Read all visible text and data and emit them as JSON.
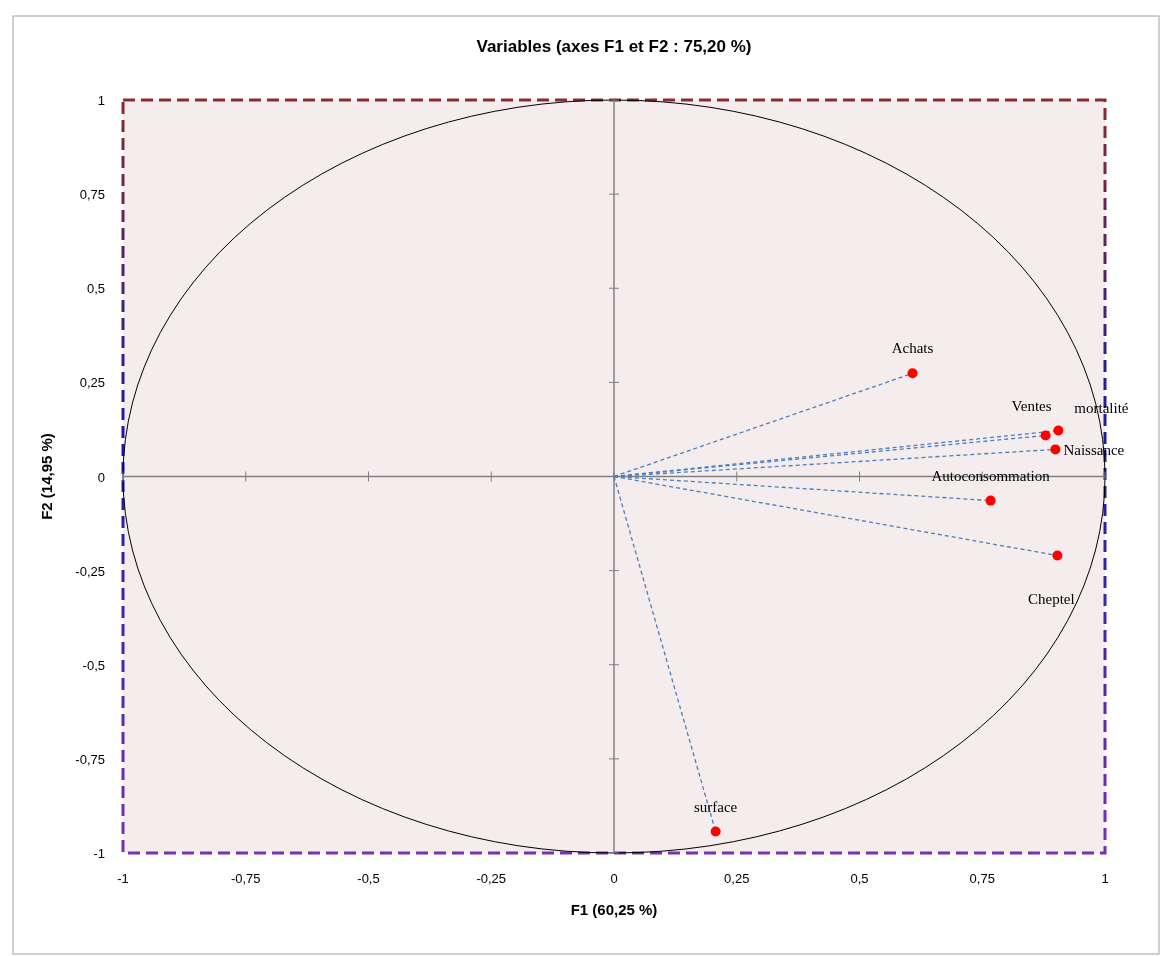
{
  "chart_data": {
    "type": "scatter",
    "title": "Variables (axes F1 et F2 : 75,20 %)",
    "xlabel": "F1 (60,25 %)",
    "ylabel": "F2 (14,95 %)",
    "xlim": [
      -1,
      1
    ],
    "ylim": [
      -1,
      1
    ],
    "xticks": [
      {
        "value": -1,
        "label": "-1"
      },
      {
        "value": -0.75,
        "label": "-0,75"
      },
      {
        "value": -0.5,
        "label": "-0,5"
      },
      {
        "value": -0.25,
        "label": "-0,25"
      },
      {
        "value": 0,
        "label": "0"
      },
      {
        "value": 0.25,
        "label": "0,25"
      },
      {
        "value": 0.5,
        "label": "0,5"
      },
      {
        "value": 0.75,
        "label": "0,75"
      },
      {
        "value": 1,
        "label": "1"
      }
    ],
    "yticks": [
      {
        "value": -1,
        "label": "-1"
      },
      {
        "value": -0.75,
        "label": "-0,75"
      },
      {
        "value": -0.5,
        "label": "-0,5"
      },
      {
        "value": -0.25,
        "label": "-0,25"
      },
      {
        "value": 0,
        "label": "0"
      },
      {
        "value": 0.25,
        "label": "0,25"
      },
      {
        "value": 0.5,
        "label": "0,5"
      },
      {
        "value": 0.75,
        "label": "0,75"
      },
      {
        "value": 1,
        "label": "1"
      }
    ],
    "series": [
      {
        "type": "line",
        "color": "#4a7ebf",
        "line_style": "dashed",
        "marker": "none",
        "x": [
          0,
          0.608
        ],
        "values": [
          0,
          0.274
        ]
      },
      {
        "type": "line",
        "color": "#4a7ebf",
        "line_style": "dashed",
        "marker": "none",
        "x": [
          0,
          0.879
        ],
        "values": [
          0,
          0.109
        ]
      },
      {
        "type": "line",
        "color": "#4a7ebf",
        "line_style": "dashed",
        "marker": "none",
        "x": [
          0,
          0.905
        ],
        "values": [
          0,
          0.122
        ]
      },
      {
        "type": "line",
        "color": "#4a7ebf",
        "line_style": "dashed",
        "marker": "none",
        "x": [
          0,
          0.899
        ],
        "values": [
          0,
          0.072
        ]
      },
      {
        "type": "line",
        "color": "#4a7ebf",
        "line_style": "dashed",
        "marker": "none",
        "x": [
          0,
          0.767
        ],
        "values": [
          0,
          -0.064
        ]
      },
      {
        "type": "line",
        "color": "#4a7ebf",
        "line_style": "dashed",
        "marker": "none",
        "x": [
          0,
          0.903
        ],
        "values": [
          0,
          -0.21
        ]
      },
      {
        "type": "line",
        "color": "#4a7ebf",
        "line_style": "dashed",
        "marker": "none",
        "x": [
          0,
          0.207
        ],
        "values": [
          0,
          -0.943
        ]
      },
      {
        "color": "#ff0000",
        "marker": "circle",
        "x": [
          0.608,
          0.879,
          0.905,
          0.899,
          0.767,
          0.903,
          0.207
        ],
        "values": [
          0.274,
          0.109,
          0.122,
          0.072,
          -0.064,
          -0.21,
          -0.943
        ]
      }
    ],
    "annotations": [
      {
        "text": "Achats",
        "x": 0.608,
        "y": 0.274
      },
      {
        "text": "Ventes",
        "x": 0.879,
        "y": 0.109
      },
      {
        "text": "mortalité",
        "x": 0.905,
        "y": 0.122
      },
      {
        "text": "Naissance",
        "x": 0.899,
        "y": 0.072
      },
      {
        "text": "Autoconsommation",
        "x": 0.767,
        "y": -0.064
      },
      {
        "text": "Cheptel",
        "x": 0.903,
        "y": -0.21
      },
      {
        "text": "surface",
        "x": 0.207,
        "y": -0.943
      }
    ]
  }
}
